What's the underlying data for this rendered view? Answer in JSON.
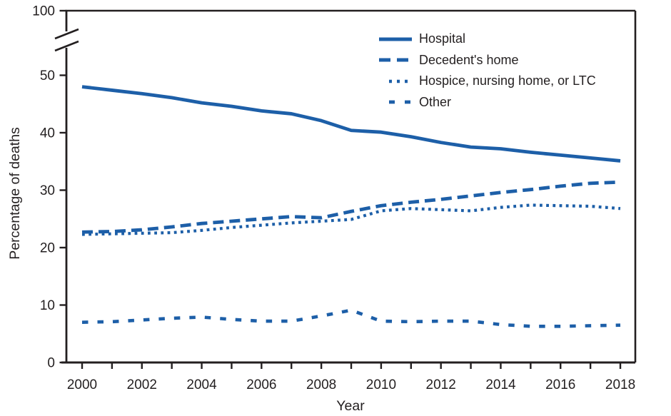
{
  "chart_data": {
    "type": "line",
    "title": "",
    "xlabel": "Year",
    "ylabel": "Percentage of deaths",
    "x": [
      2000,
      2001,
      2002,
      2003,
      2004,
      2005,
      2006,
      2007,
      2008,
      2009,
      2010,
      2011,
      2012,
      2013,
      2014,
      2015,
      2016,
      2017,
      2018
    ],
    "series": [
      {
        "name": "Hospital",
        "style": "solid",
        "values": [
          48.0,
          47.4,
          46.8,
          46.1,
          45.2,
          44.6,
          43.8,
          43.3,
          42.1,
          40.4,
          40.1,
          39.3,
          38.3,
          37.5,
          37.2,
          36.6,
          36.1,
          35.6,
          35.1
        ]
      },
      {
        "name": "Decedent's home",
        "style": "long-dash",
        "values": [
          22.7,
          22.8,
          23.1,
          23.6,
          24.2,
          24.6,
          25.0,
          25.4,
          25.2,
          26.3,
          27.3,
          27.9,
          28.4,
          29.0,
          29.6,
          30.1,
          30.7,
          31.2,
          31.4
        ]
      },
      {
        "name": "Hospice, nursing home, or LTC",
        "style": "dotted",
        "values": [
          22.3,
          22.4,
          22.5,
          22.6,
          23.0,
          23.5,
          23.9,
          24.3,
          24.6,
          24.9,
          26.4,
          26.8,
          26.6,
          26.4,
          27.0,
          27.4,
          27.3,
          27.2,
          26.8
        ]
      },
      {
        "name": "Other",
        "style": "short-dash",
        "values": [
          7.0,
          7.1,
          7.4,
          7.7,
          7.9,
          7.5,
          7.2,
          7.2,
          8.1,
          9.1,
          7.2,
          7.1,
          7.2,
          7.2,
          6.6,
          6.3,
          6.3,
          6.4,
          6.5
        ]
      }
    ],
    "y_ticks": [
      0,
      10,
      20,
      30,
      40,
      50
    ],
    "y_break_top_tick": 100,
    "axis_break": true,
    "x_tick_years": [
      2000,
      2001,
      2002,
      2003,
      2004,
      2005,
      2006,
      2007,
      2008,
      2009,
      2010,
      2011,
      2012,
      2013,
      2014,
      2015,
      2016,
      2017,
      2018
    ],
    "x_tick_labels": [
      "2000",
      "2002",
      "2004",
      "2006",
      "2008",
      "2010",
      "2012",
      "2014",
      "2016",
      "2018"
    ],
    "ylim_display": [
      0,
      50
    ],
    "grid": false,
    "legend_position": "top-right-inside",
    "line_color": "#1d5fa8",
    "axis_color": "#231f20"
  }
}
